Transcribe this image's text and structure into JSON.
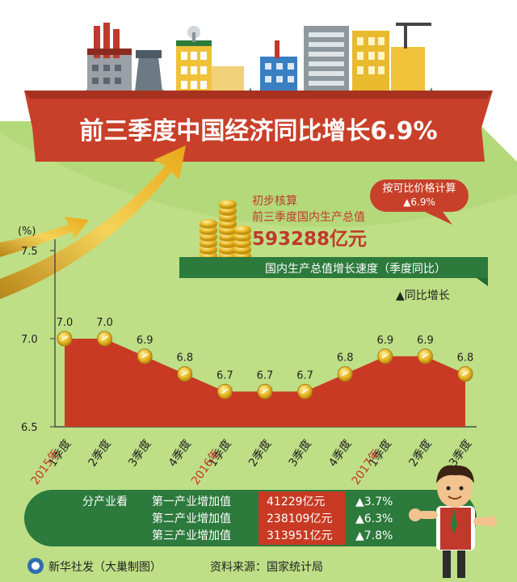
{
  "title": "前三季度中国经济同比增长6.9%",
  "badge": {
    "line1": "按可比价格计算",
    "line2": "▲6.9%"
  },
  "gdp_summary": {
    "line1": "初步核算",
    "line2": "前三季度国内生产总值",
    "value": "593288亿元"
  },
  "chart_banner": "国内生产总值增长速度（季度同比）",
  "legend_label": "▲同比增长",
  "chart_data": {
    "type": "area",
    "unit_label": "(%)",
    "categories": [
      "1季度",
      "2季度",
      "3季度",
      "4季度",
      "1季度",
      "2季度",
      "3季度",
      "4季度",
      "1季度",
      "2季度",
      "3季度"
    ],
    "values": [
      7.0,
      7.0,
      6.9,
      6.8,
      6.7,
      6.7,
      6.7,
      6.8,
      6.9,
      6.9,
      6.8
    ],
    "value_labels": [
      "7.0",
      "7.0",
      "6.9",
      "6.8",
      "6.7",
      "6.7",
      "6.7",
      "6.8",
      "6.9",
      "6.9",
      "6.8"
    ],
    "year_labels": [
      {
        "index": 0,
        "label": "2015年"
      },
      {
        "index": 4,
        "label": "2016年"
      },
      {
        "index": 8,
        "label": "2017年"
      }
    ],
    "y_ticks": [
      "7.5",
      "7.0",
      "6.5"
    ],
    "ylim": [
      6.5,
      7.5
    ],
    "fill_color": "#c83a23",
    "marker_color": "#e8b520",
    "year_color": "#c0392b"
  },
  "industry": {
    "heading": "分产业看",
    "rows": [
      {
        "name": "第一产业增加值",
        "value": "41229亿元",
        "growth": "▲3.7%"
      },
      {
        "name": "第二产业增加值",
        "value": "238109亿元",
        "growth": "▲6.3%"
      },
      {
        "name": "第三产业增加值",
        "value": "313951亿元",
        "growth": "▲7.8%"
      }
    ]
  },
  "footer": {
    "credit": "新华社发（大巢制图）",
    "source": "资料来源：国家统计局"
  },
  "colors": {
    "title_banner": "#c8402a",
    "panel_green": "#b4d97a",
    "dark_green": "#2c7a3c",
    "gold": "#e8b520"
  }
}
